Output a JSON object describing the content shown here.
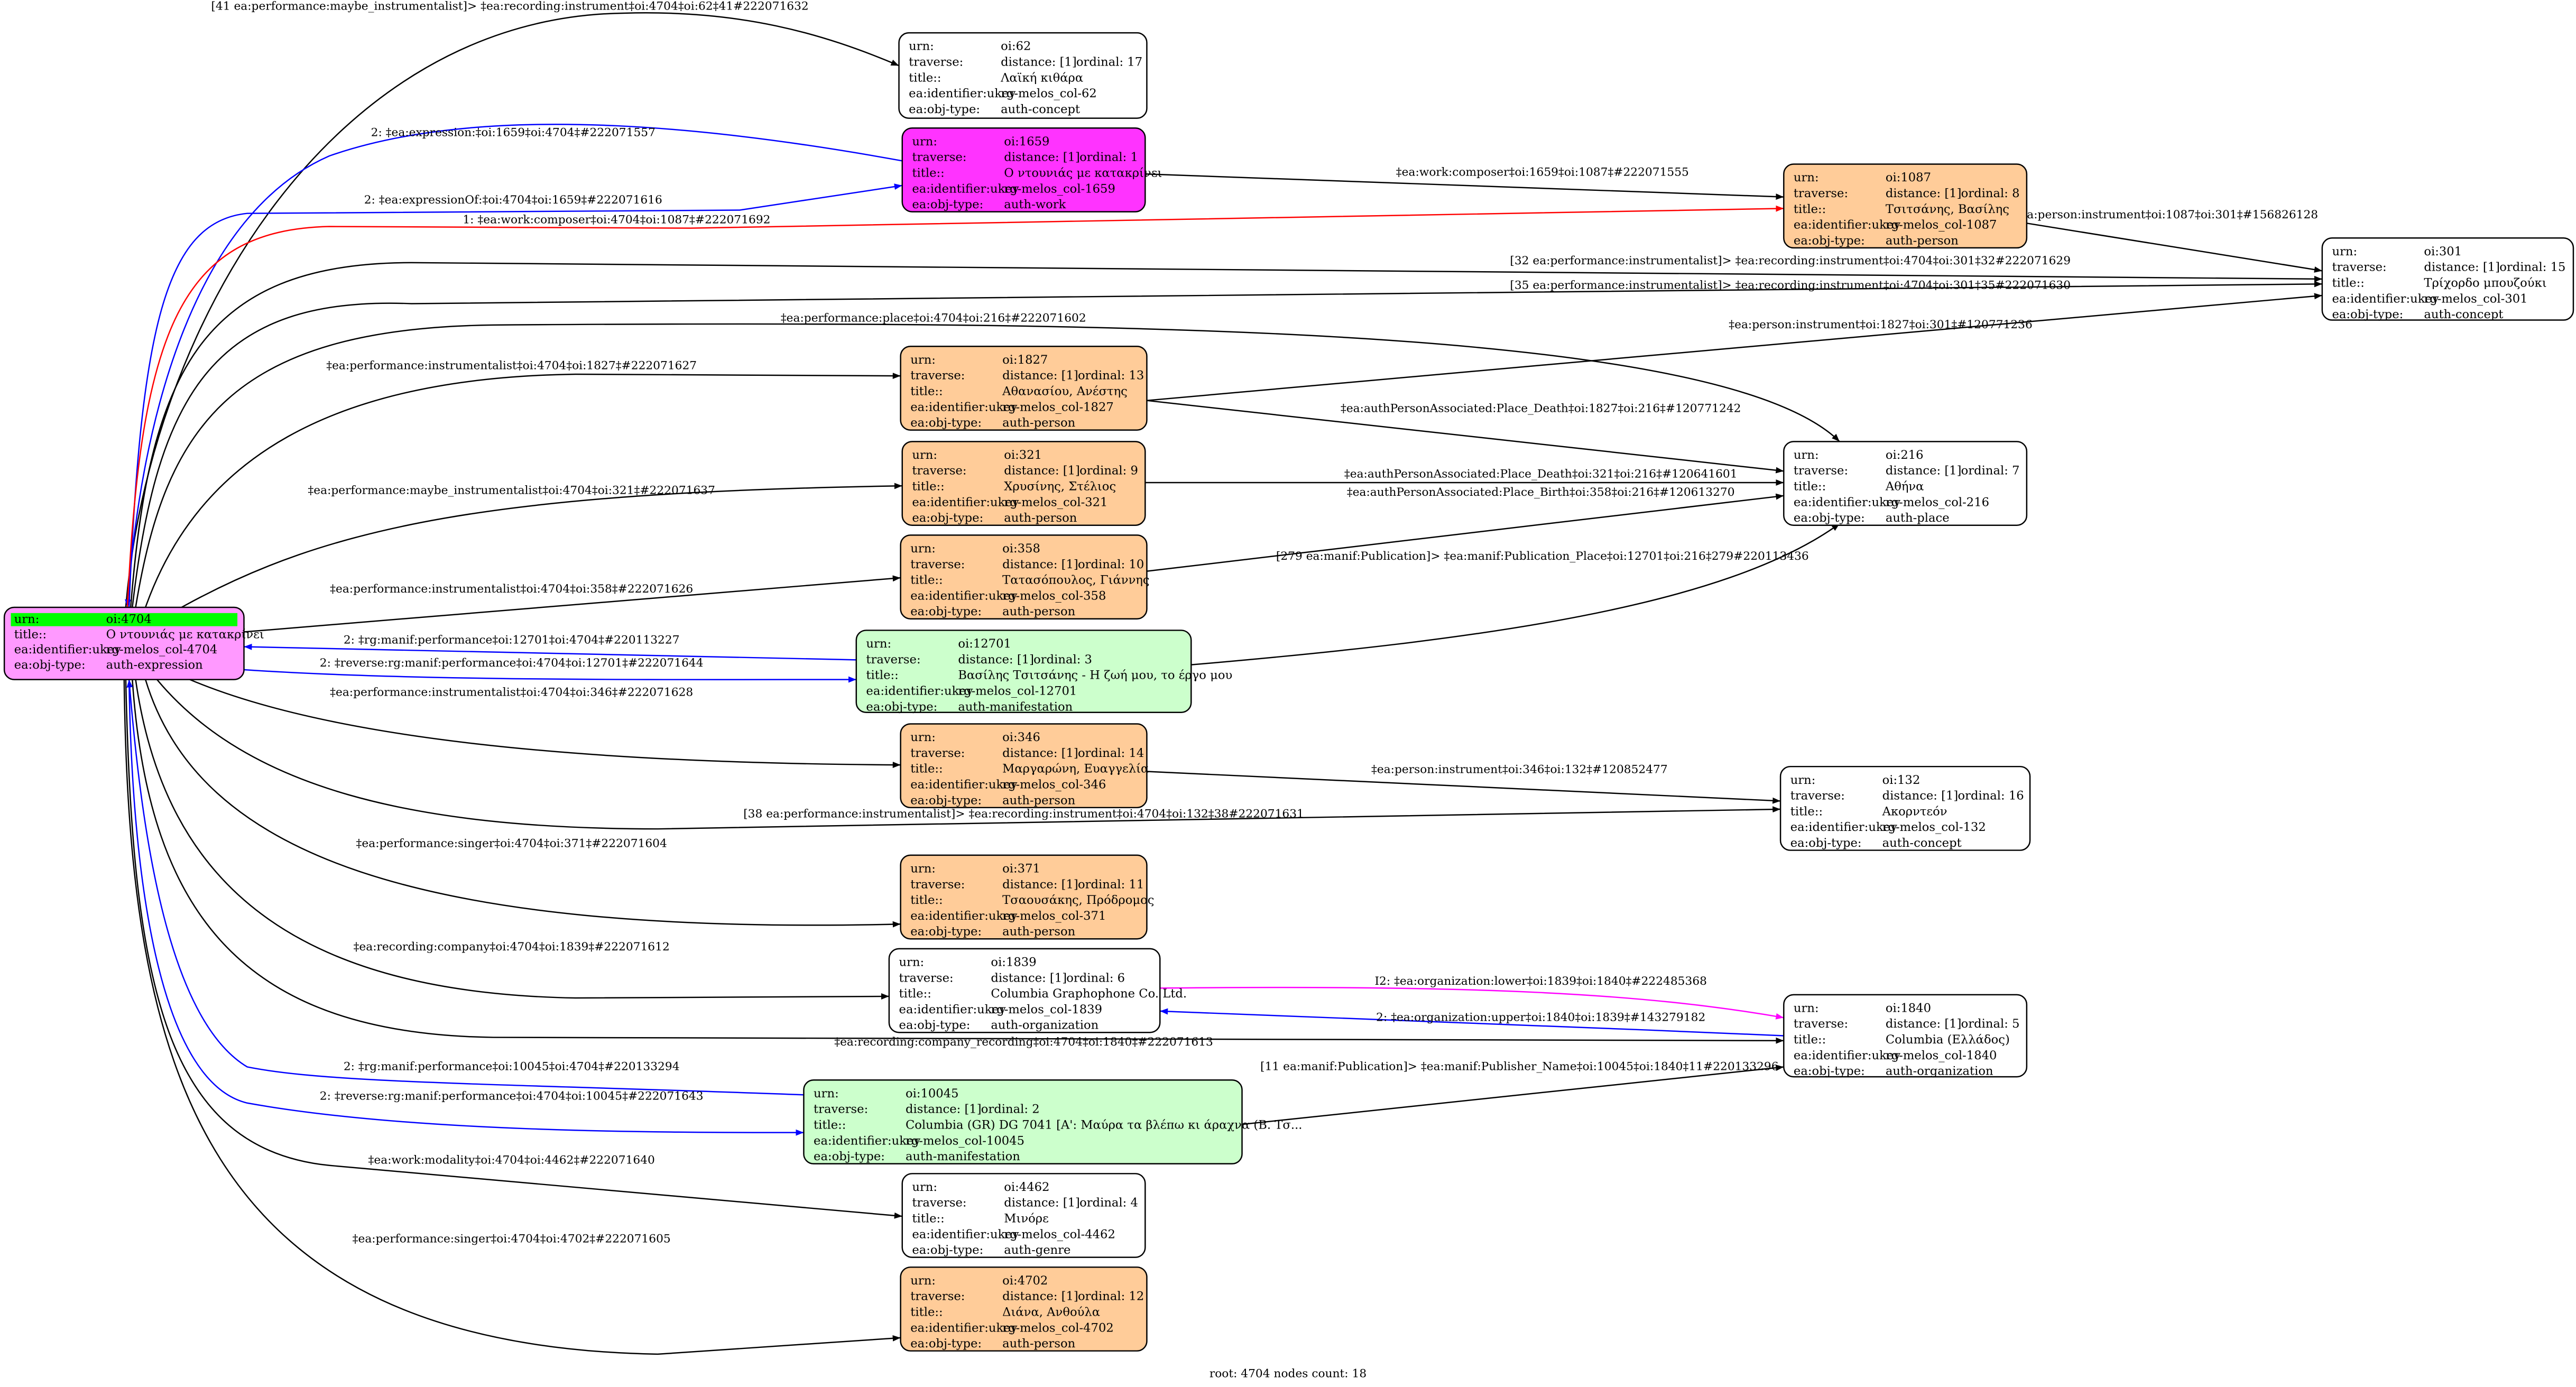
{
  "row_labels": {
    "urn": "urn:",
    "traverse": "traverse:",
    "title": "title::",
    "ukey": "ea:identifier:ukey",
    "obj_type": "ea:obj-type:"
  },
  "colors": {
    "root_urn_highlight": "#00ff00",
    "expression": "#ff99ff",
    "work": "#ff33ff",
    "person": "#ffcc99",
    "manifestation": "#ccffcc",
    "plain": "#ffffff",
    "edge_default": "#000000",
    "edge_blue": "#0000ff",
    "edge_red": "#ff0000",
    "edge_magenta": "#ff00ff"
  },
  "nodes": [
    {
      "id": "4704",
      "urn": "oi:4704",
      "title": "Ο ντουνιάς με κατακρίνει",
      "ukey": "rg-melos_col-4704",
      "obj_type": "auth-expression",
      "fill": "#ff99ff",
      "root": true
    },
    {
      "id": "62",
      "urn": "oi:62",
      "distance": "distance: [1]",
      "ordinal": "ordinal: 17",
      "title": "Λαϊκή κιθάρα",
      "ukey": "rg-melos_col-62",
      "obj_type": "auth-concept",
      "fill": "#ffffff"
    },
    {
      "id": "1659",
      "urn": "oi:1659",
      "distance": "distance: [1]",
      "ordinal": "ordinal: 1",
      "title": "Ο ντουνιάς με κατακρίνει",
      "ukey": "rg-melos_col-1659",
      "obj_type": "auth-work",
      "fill": "#ff33ff"
    },
    {
      "id": "1087",
      "urn": "oi:1087",
      "distance": "distance: [1]",
      "ordinal": "ordinal: 8",
      "title": "Τσιτσάνης, Βασίλης",
      "ukey": "rg-melos_col-1087",
      "obj_type": "auth-person",
      "fill": "#ffcc99"
    },
    {
      "id": "301",
      "urn": "oi:301",
      "distance": "distance: [1]",
      "ordinal": "ordinal: 15",
      "title": "Τρίχορδο μπουζούκι",
      "ukey": "rg-melos_col-301",
      "obj_type": "auth-concept",
      "fill": "#ffffff"
    },
    {
      "id": "1827",
      "urn": "oi:1827",
      "distance": "distance: [1]",
      "ordinal": "ordinal: 13",
      "title": "Αθανασίου, Ανέστης",
      "ukey": "rg-melos_col-1827",
      "obj_type": "auth-person",
      "fill": "#ffcc99"
    },
    {
      "id": "321",
      "urn": "oi:321",
      "distance": "distance: [1]",
      "ordinal": "ordinal: 9",
      "title": "Χρυσίνης, Στέλιος",
      "ukey": "rg-melos_col-321",
      "obj_type": "auth-person",
      "fill": "#ffcc99"
    },
    {
      "id": "358",
      "urn": "oi:358",
      "distance": "distance: [1]",
      "ordinal": "ordinal: 10",
      "title": "Τατασόπουλος, Γιάννης",
      "ukey": "rg-melos_col-358",
      "obj_type": "auth-person",
      "fill": "#ffcc99"
    },
    {
      "id": "216",
      "urn": "oi:216",
      "distance": "distance: [1]",
      "ordinal": "ordinal: 7",
      "title": "Αθήνα",
      "ukey": "rg-melos_col-216",
      "obj_type": "auth-place",
      "fill": "#ffffff"
    },
    {
      "id": "12701",
      "urn": "oi:12701",
      "distance": "distance: [1]",
      "ordinal": "ordinal: 3",
      "title": "Βασίλης Τσιτσάνης - Η ζωή μου, το έργο μου",
      "ukey": "rg-melos_col-12701",
      "obj_type": "auth-manifestation",
      "fill": "#ccffcc"
    },
    {
      "id": "346",
      "urn": "oi:346",
      "distance": "distance: [1]",
      "ordinal": "ordinal: 14",
      "title": "Μαργαρώνη, Ευαγγελία",
      "ukey": "rg-melos_col-346",
      "obj_type": "auth-person",
      "fill": "#ffcc99"
    },
    {
      "id": "132",
      "urn": "oi:132",
      "distance": "distance: [1]",
      "ordinal": "ordinal: 16",
      "title": "Ακορντεόν",
      "ukey": "rg-melos_col-132",
      "obj_type": "auth-concept",
      "fill": "#ffffff"
    },
    {
      "id": "371",
      "urn": "oi:371",
      "distance": "distance: [1]",
      "ordinal": "ordinal: 11",
      "title": "Τσαουσάκης, Πρόδρομος",
      "ukey": "rg-melos_col-371",
      "obj_type": "auth-person",
      "fill": "#ffcc99"
    },
    {
      "id": "1839",
      "urn": "oi:1839",
      "distance": "distance: [1]",
      "ordinal": "ordinal: 6",
      "title": "Columbia Graphophone Co. Ltd.",
      "ukey": "rg-melos_col-1839",
      "obj_type": "auth-organization",
      "fill": "#ffffff"
    },
    {
      "id": "1840",
      "urn": "oi:1840",
      "distance": "distance: [1]",
      "ordinal": "ordinal: 5",
      "title": "Columbia (Ελλάδος)",
      "ukey": "rg-melos_col-1840",
      "obj_type": "auth-organization",
      "fill": "#ffffff"
    },
    {
      "id": "10045",
      "urn": "oi:10045",
      "distance": "distance: [1]",
      "ordinal": "ordinal: 2",
      "title": "Columbia (GR) DG 7041 [A': Μαύρα τα βλέπω κι άραχνα (Β. Τσ...",
      "ukey": "rg-melos_col-10045",
      "obj_type": "auth-manifestation",
      "fill": "#ccffcc"
    },
    {
      "id": "4462",
      "urn": "oi:4462",
      "distance": "distance: [1]",
      "ordinal": "ordinal: 4",
      "title": "Μινόρε",
      "ukey": "rg-melos_col-4462",
      "obj_type": "auth-genre",
      "fill": "#ffffff"
    },
    {
      "id": "4702",
      "urn": "oi:4702",
      "distance": "distance: [1]",
      "ordinal": "ordinal: 12",
      "title": "Διάνα, Ανθούλα",
      "ukey": "rg-melos_col-4702",
      "obj_type": "auth-person",
      "fill": "#ffcc99"
    }
  ],
  "edges": [
    {
      "from": "4704",
      "to": "62",
      "color": "#000000",
      "label": "[41 ea:performance:maybe_instrumentalist]> ‡ea:recording:instrument‡oi:4704‡oi:62‡41#222071632"
    },
    {
      "from": "1659",
      "to": "4704",
      "color": "#0000ff",
      "label": "2: ‡ea:expression:‡oi:1659‡oi:4704‡#222071557"
    },
    {
      "from": "4704",
      "to": "1659",
      "color": "#0000ff",
      "label": "2: ‡ea:expressionOf:‡oi:4704‡oi:1659‡#222071616"
    },
    {
      "from": "4704",
      "to": "1087",
      "color": "#ff0000",
      "label": "1: ‡ea:work:composer‡oi:4704‡oi:1087‡#222071692"
    },
    {
      "from": "1659",
      "to": "1087",
      "color": "#000000",
      "label": "‡ea:work:composer‡oi:1659‡oi:1087‡#222071555"
    },
    {
      "from": "1087",
      "to": "301",
      "color": "#000000",
      "label": "‡ea:person:instrument‡oi:1087‡oi:301‡#156826128"
    },
    {
      "from": "4704",
      "to": "301",
      "color": "#000000",
      "label": "[32 ea:performance:instrumentalist]> ‡ea:recording:instrument‡oi:4704‡oi:301‡32#222071629"
    },
    {
      "from": "4704",
      "to": "301",
      "color": "#000000",
      "label": "[35 ea:performance:instrumentalist]> ‡ea:recording:instrument‡oi:4704‡oi:301‡35#222071630"
    },
    {
      "from": "4704",
      "to": "216",
      "color": "#000000",
      "label": "‡ea:performance:place‡oi:4704‡oi:216‡#222071602"
    },
    {
      "from": "4704",
      "to": "1827",
      "color": "#000000",
      "label": "‡ea:performance:instrumentalist‡oi:4704‡oi:1827‡#222071627"
    },
    {
      "from": "1827",
      "to": "301",
      "color": "#000000",
      "label": "‡ea:person:instrument‡oi:1827‡oi:301‡#120771236"
    },
    {
      "from": "1827",
      "to": "216",
      "color": "#000000",
      "label": "‡ea:authPersonAssociated:Place_Death‡oi:1827‡oi:216‡#120771242"
    },
    {
      "from": "4704",
      "to": "321",
      "color": "#000000",
      "label": "‡ea:performance:maybe_instrumentalist‡oi:4704‡oi:321‡#222071637"
    },
    {
      "from": "321",
      "to": "216",
      "color": "#000000",
      "label": "‡ea:authPersonAssociated:Place_Death‡oi:321‡oi:216‡#120641601"
    },
    {
      "from": "358",
      "to": "216",
      "color": "#000000",
      "label": "‡ea:authPersonAssociated:Place_Birth‡oi:358‡oi:216‡#120613270"
    },
    {
      "from": "4704",
      "to": "358",
      "color": "#000000",
      "label": "‡ea:performance:instrumentalist‡oi:4704‡oi:358‡#222071626"
    },
    {
      "from": "12701",
      "to": "4704",
      "color": "#0000ff",
      "label": "2: ‡rg:manif:performance‡oi:12701‡oi:4704‡#220113227"
    },
    {
      "from": "4704",
      "to": "12701",
      "color": "#0000ff",
      "label": "2: ‡reverse:rg:manif:performance‡oi:4704‡oi:12701‡#222071644"
    },
    {
      "from": "12701",
      "to": "216",
      "color": "#000000",
      "label": "[279 ea:manif:Publication]> ‡ea:manif:Publication_Place‡oi:12701‡oi:216‡279#220113436"
    },
    {
      "from": "4704",
      "to": "346",
      "color": "#000000",
      "label": "‡ea:performance:instrumentalist‡oi:4704‡oi:346‡#222071628"
    },
    {
      "from": "346",
      "to": "132",
      "color": "#000000",
      "label": "‡ea:person:instrument‡oi:346‡oi:132‡#120852477"
    },
    {
      "from": "4704",
      "to": "132",
      "color": "#000000",
      "label": "[38 ea:performance:instrumentalist]> ‡ea:recording:instrument‡oi:4704‡oi:132‡38#222071631"
    },
    {
      "from": "4704",
      "to": "371",
      "color": "#000000",
      "label": "‡ea:performance:singer‡oi:4704‡oi:371‡#222071604"
    },
    {
      "from": "4704",
      "to": "1839",
      "color": "#000000",
      "label": "‡ea:recording:company‡oi:4704‡oi:1839‡#222071612"
    },
    {
      "from": "1839",
      "to": "1840",
      "color": "#ff00ff",
      "label": "I2: ‡ea:organization:lower‡oi:1839‡oi:1840‡#222485368"
    },
    {
      "from": "1840",
      "to": "1839",
      "color": "#0000ff",
      "label": "2: ‡ea:organization:upper‡oi:1840‡oi:1839‡#143279182"
    },
    {
      "from": "4704",
      "to": "1840",
      "color": "#000000",
      "label": "‡ea:recording:company_recording‡oi:4704‡oi:1840‡#222071613"
    },
    {
      "from": "10045",
      "to": "4704",
      "color": "#0000ff",
      "label": "2: ‡rg:manif:performance‡oi:10045‡oi:4704‡#220133294"
    },
    {
      "from": "4704",
      "to": "10045",
      "color": "#0000ff",
      "label": "2: ‡reverse:rg:manif:performance‡oi:4704‡oi:10045‡#222071643"
    },
    {
      "from": "10045",
      "to": "1840",
      "color": "#000000",
      "label": "[11 ea:manif:Publication]> ‡ea:manif:Publisher_Name‡oi:10045‡oi:1840‡11#220133296"
    },
    {
      "from": "4704",
      "to": "4462",
      "color": "#000000",
      "label": "‡ea:work:modality‡oi:4704‡oi:4462‡#222071640"
    },
    {
      "from": "4704",
      "to": "4702",
      "color": "#000000",
      "label": "‡ea:performance:singer‡oi:4704‡oi:4702‡#222071605"
    }
  ],
  "footer": "root: 4704 nodes count: 18"
}
